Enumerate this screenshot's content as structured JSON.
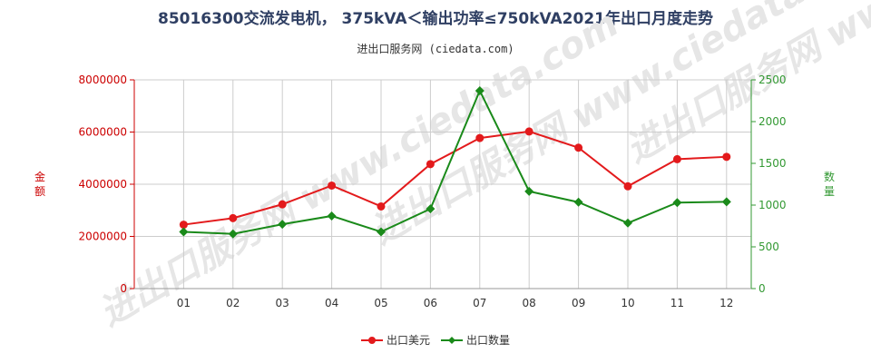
{
  "title": "85016300交流发电机， 375kVA＜输出功率≤750kVA2021年出口月度走势",
  "subtitle": "进出口服务网 (ciedata.com)",
  "watermark": "进出口服务网 www.ciedata.com",
  "chart_data": {
    "type": "line",
    "categories": [
      "01",
      "02",
      "03",
      "04",
      "05",
      "06",
      "07",
      "08",
      "09",
      "10",
      "11",
      "12"
    ],
    "y_left": {
      "label": "金额",
      "ylim": [
        0,
        8000000
      ],
      "ticks": [
        "0",
        "2000000",
        "4000000",
        "6000000",
        "8000000"
      ],
      "color": "#cc0000"
    },
    "y_right": {
      "label": "数量",
      "ylim": [
        0,
        2500
      ],
      "ticks": [
        "0",
        "500",
        "1000",
        "1500",
        "2000",
        "2500"
      ],
      "color": "#339933"
    },
    "series": [
      {
        "name": "出口美元",
        "axis": "left",
        "color": "#e31a1c",
        "marker": "circle",
        "values": [
          2450000,
          2700000,
          3230000,
          3950000,
          3150000,
          4770000,
          5770000,
          6020000,
          5400000,
          3920000,
          4960000,
          5050000
        ]
      },
      {
        "name": "出口数量",
        "axis": "right",
        "color": "#1a8a1a",
        "marker": "diamond",
        "values": [
          680,
          655,
          770,
          870,
          680,
          955,
          2370,
          1165,
          1035,
          785,
          1030,
          1040
        ]
      }
    ],
    "grid": true,
    "legend_position": "bottom-center"
  }
}
